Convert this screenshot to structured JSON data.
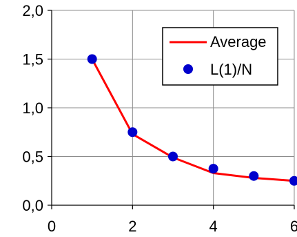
{
  "chart_data": {
    "type": "line",
    "title": "",
    "xlabel": "",
    "ylabel": "",
    "xlim": [
      0,
      6
    ],
    "ylim": [
      0,
      2.0
    ],
    "x_ticks": [
      0,
      2,
      4,
      6
    ],
    "x_tick_labels": [
      "0",
      "2",
      "4",
      "6"
    ],
    "y_ticks": [
      0,
      0.5,
      1.0,
      1.5,
      2.0
    ],
    "y_tick_labels": [
      "0,0",
      "0,5",
      "1,0",
      "1,5",
      "2,0"
    ],
    "grid": true,
    "legend_position": "top-right",
    "series": [
      {
        "name": "Average",
        "kind": "line",
        "color": "#ff0000",
        "x": [
          1,
          2,
          3,
          4,
          5,
          6
        ],
        "y": [
          1.5,
          0.73,
          0.49,
          0.33,
          0.28,
          0.25
        ]
      },
      {
        "name": "L(1)/N",
        "kind": "scatter",
        "color": "#0000cc",
        "x": [
          1,
          2,
          3,
          4,
          5,
          6
        ],
        "y": [
          1.5,
          0.75,
          0.5,
          0.375,
          0.3,
          0.25
        ]
      }
    ]
  }
}
